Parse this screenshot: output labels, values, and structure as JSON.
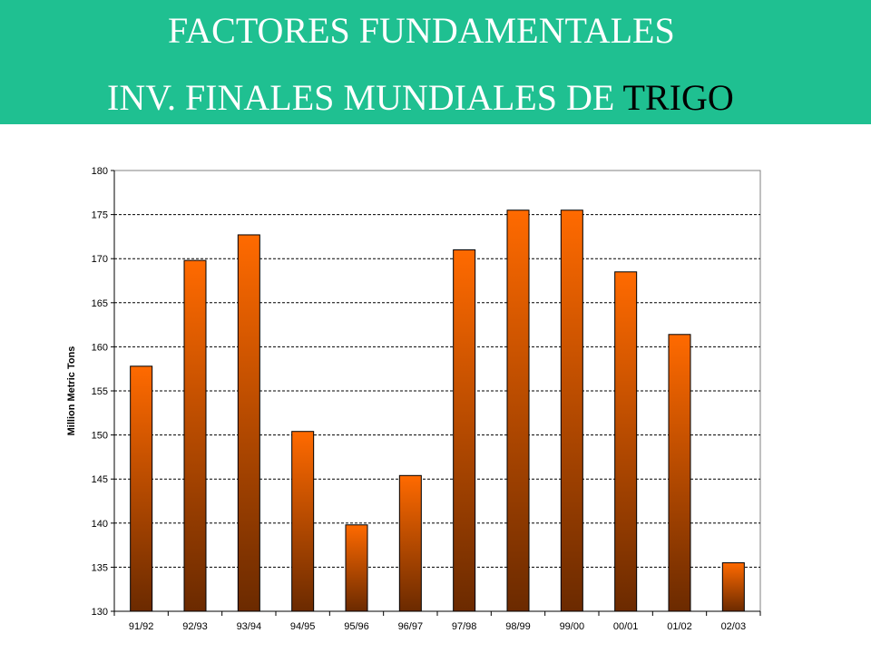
{
  "header": {
    "title_line1": "FACTORES FUNDAMENTALES",
    "title_line2_main": "INV. FINALES MUNDIALES DE ",
    "title_line2_accent": "TRIGO",
    "banner_color": "#1fc091",
    "accent_color": "#000000"
  },
  "chart_data": {
    "type": "bar",
    "title": "",
    "xlabel": "",
    "ylabel": "Million Metric Tons",
    "categories": [
      "91/92",
      "92/93",
      "93/94",
      "94/95",
      "95/96",
      "96/97",
      "97/98",
      "98/99",
      "99/00",
      "00/01",
      "01/02",
      "02/03"
    ],
    "values": [
      157.8,
      169.8,
      172.7,
      150.4,
      139.8,
      145.4,
      171.0,
      175.5,
      175.5,
      168.5,
      161.4,
      135.5
    ],
    "ylim": [
      130,
      180
    ],
    "yticks": [
      130,
      135,
      140,
      145,
      150,
      155,
      160,
      165,
      170,
      175,
      180
    ],
    "grid": true,
    "legend": "none",
    "bar_color_top": "#ff6a00",
    "bar_color_bottom": "#6b2a00"
  }
}
